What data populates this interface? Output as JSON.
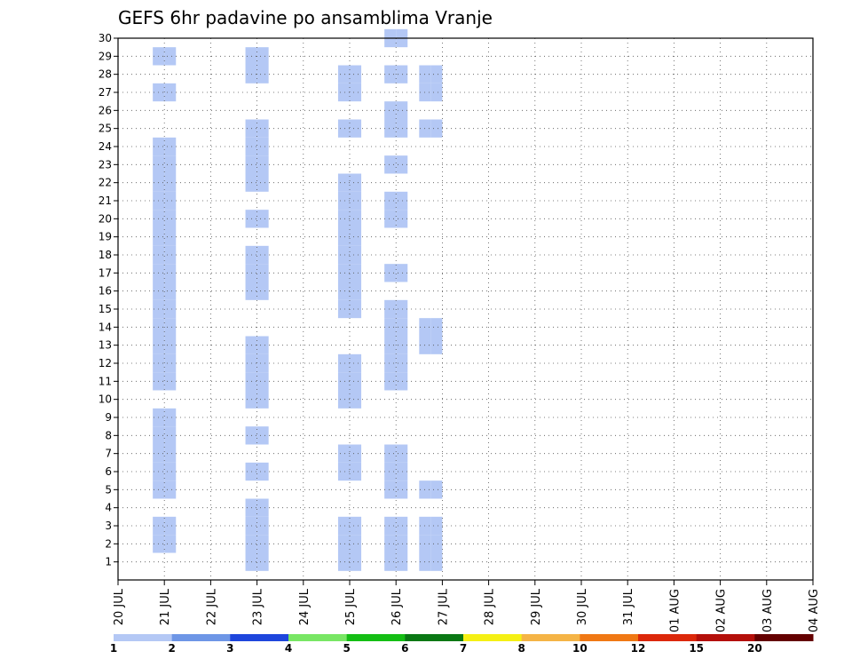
{
  "chart_data": {
    "type": "heatmap",
    "title": "GEFS 6hr padavine po ansamblima Vranje",
    "y_range": [
      0,
      30
    ],
    "y_ticks": [
      1,
      2,
      3,
      4,
      5,
      6,
      7,
      8,
      9,
      10,
      11,
      12,
      13,
      14,
      15,
      16,
      17,
      18,
      19,
      20,
      21,
      22,
      23,
      24,
      25,
      26,
      27,
      28,
      29,
      30
    ],
    "x_ticks": [
      "20 JUL",
      "21 JUL",
      "22 JUL",
      "23 JUL",
      "24 JUL",
      "25 JUL",
      "26 JUL",
      "27 JUL",
      "28 JUL",
      "29 JUL",
      "30 JUL",
      "31 JUL",
      "01 AUG",
      "02 AUG",
      "03 AUG",
      "04 AUG"
    ],
    "x_range": [
      0,
      15
    ],
    "step_days": 0.25,
    "grid": true,
    "legend": {
      "position": "bottom",
      "levels": [
        "1",
        "2",
        "3",
        "4",
        "5",
        "6",
        "7",
        "8",
        "10",
        "12",
        "15",
        "20"
      ],
      "colors": [
        "#b4c8f5",
        "#6e96e6",
        "#1e46dc",
        "#78e664",
        "#14be14",
        "#0a7814",
        "#f5f014",
        "#f5b446",
        "#f07814",
        "#dc280a",
        "#b40f0a",
        "#640000"
      ]
    },
    "cells": [
      {
        "d": "21 JUL",
        "d0": 0.75,
        "d1": 1.25,
        "m": [
          2,
          3,
          5,
          6,
          7,
          8,
          9,
          11,
          12,
          13,
          14,
          15,
          16,
          17,
          18,
          19,
          20,
          21,
          22,
          23,
          24,
          27,
          29
        ]
      },
      {
        "d": "23 JUL",
        "d0": 2.75,
        "d1": 3.25,
        "m": [
          1,
          2,
          3,
          4,
          6,
          8,
          10,
          11,
          12,
          13,
          16,
          17,
          18,
          20,
          22,
          23,
          24,
          25,
          28,
          29
        ]
      },
      {
        "d": "25 JUL",
        "d0": 4.75,
        "d1": 5.25,
        "m": [
          1,
          2,
          3,
          6,
          7,
          10,
          11,
          12,
          15,
          16,
          17,
          18,
          19,
          20,
          21,
          22,
          25,
          27,
          28
        ]
      },
      {
        "d": "26 JUL",
        "d0": 5.75,
        "d1": 6.25,
        "m": [
          1,
          2,
          3,
          5,
          6,
          7,
          11,
          12,
          13,
          14,
          15,
          17,
          20,
          21,
          23,
          25,
          26,
          28,
          30
        ]
      },
      {
        "d": "27 JUL",
        "d0": 6.5,
        "d1": 7,
        "m": [
          1,
          2,
          3,
          5,
          13,
          14,
          25,
          27,
          28
        ]
      }
    ],
    "scale_note": "Each row = ensemble member, each column = 6hr forecast step; colored cells indicate precipitation (mm/6h) per legend."
  }
}
